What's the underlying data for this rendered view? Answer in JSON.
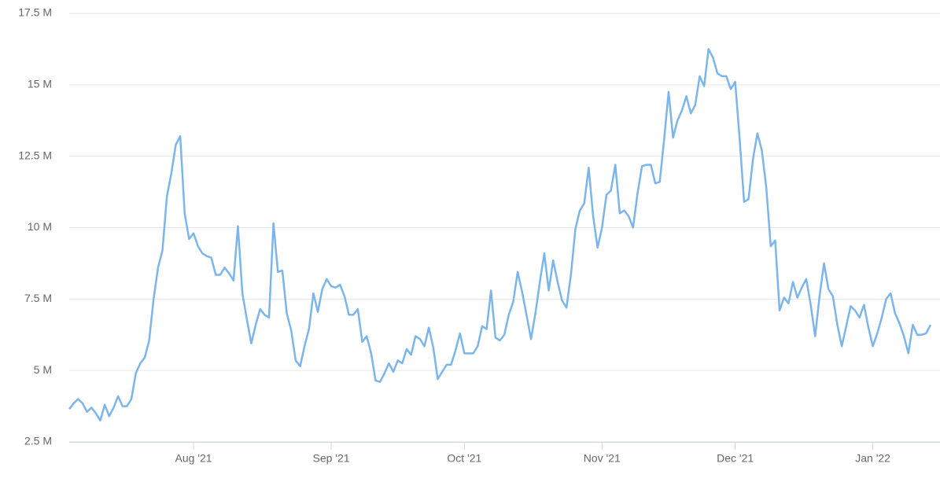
{
  "chart_data": {
    "type": "line",
    "categories": [
      null,
      null,
      null,
      null,
      null,
      null,
      null,
      null,
      null,
      null,
      null,
      null,
      null,
      null,
      null,
      null,
      null,
      null,
      null,
      null,
      null,
      null,
      null,
      null,
      null,
      null,
      null,
      null,
      "Aug '21",
      null,
      null,
      null,
      null,
      null,
      null,
      null,
      null,
      null,
      null,
      null,
      null,
      null,
      null,
      null,
      null,
      null,
      null,
      null,
      null,
      null,
      null,
      null,
      null,
      null,
      null,
      null,
      null,
      null,
      null,
      "Sep '21",
      null,
      null,
      null,
      null,
      null,
      null,
      null,
      null,
      null,
      null,
      null,
      null,
      null,
      null,
      null,
      null,
      null,
      null,
      null,
      null,
      null,
      null,
      null,
      null,
      null,
      null,
      null,
      null,
      null,
      "Oct '21",
      null,
      null,
      null,
      null,
      null,
      null,
      null,
      null,
      null,
      null,
      null,
      null,
      null,
      null,
      null,
      null,
      null,
      null,
      null,
      null,
      null,
      null,
      null,
      null,
      null,
      null,
      null,
      null,
      null,
      null,
      "Nov '21",
      null,
      null,
      null,
      null,
      null,
      null,
      null,
      null,
      null,
      null,
      null,
      null,
      null,
      null,
      null,
      null,
      null,
      null,
      null,
      null,
      null,
      null,
      null,
      null,
      null,
      null,
      null,
      null,
      null,
      "Dec '21",
      null,
      null,
      null,
      null,
      null,
      null,
      null,
      null,
      null,
      null,
      null,
      null,
      null,
      null,
      null,
      null,
      null,
      null,
      null,
      null,
      null,
      null,
      null,
      null,
      null,
      null,
      null,
      null,
      null,
      null,
      "Jan '22",
      null,
      null,
      null,
      null,
      null,
      null,
      null,
      null,
      null,
      null,
      null,
      null,
      null
    ],
    "series": [
      {
        "color": "#7cb5ec",
        "values": [
          3.65,
          3.85,
          4.0,
          3.85,
          3.55,
          3.7,
          3.5,
          3.25,
          3.8,
          3.4,
          3.7,
          4.1,
          3.75,
          3.75,
          4.0,
          4.9,
          5.25,
          5.45,
          6.05,
          7.5,
          8.6,
          9.2,
          11.1,
          11.9,
          12.9,
          13.2,
          10.5,
          9.6,
          9.8,
          9.35,
          9.1,
          9.0,
          8.95,
          8.35,
          8.35,
          8.6,
          8.4,
          8.15,
          10.05,
          7.7,
          6.8,
          5.95,
          6.6,
          7.15,
          6.95,
          6.85,
          10.15,
          8.45,
          8.5,
          7.0,
          6.4,
          5.35,
          5.15,
          5.85,
          6.45,
          7.7,
          7.05,
          7.85,
          8.2,
          7.95,
          7.9,
          8.0,
          7.6,
          6.95,
          6.95,
          7.15,
          6.0,
          6.2,
          5.6,
          4.65,
          4.6,
          4.9,
          5.25,
          4.95,
          5.35,
          5.25,
          5.75,
          5.55,
          6.2,
          6.1,
          5.85,
          6.5,
          5.8,
          4.7,
          4.95,
          5.2,
          5.2,
          5.7,
          6.3,
          5.6,
          5.6,
          5.6,
          5.85,
          6.55,
          6.45,
          7.8,
          6.15,
          6.05,
          6.25,
          6.95,
          7.4,
          8.45,
          7.75,
          6.95,
          6.1,
          7.0,
          8.1,
          9.1,
          7.8,
          8.85,
          8.1,
          7.45,
          7.2,
          8.35,
          9.95,
          10.6,
          10.85,
          12.1,
          10.4,
          9.3,
          10.0,
          11.15,
          11.3,
          12.2,
          10.5,
          10.6,
          10.4,
          10.0,
          11.2,
          12.15,
          12.2,
          12.2,
          11.55,
          11.6,
          13.1,
          14.75,
          13.15,
          13.75,
          14.1,
          14.6,
          14.0,
          14.3,
          15.3,
          14.95,
          16.25,
          15.95,
          15.4,
          15.3,
          15.3,
          14.85,
          15.1,
          13.1,
          10.9,
          11.0,
          12.4,
          13.3,
          12.7,
          11.4,
          9.35,
          9.55,
          7.1,
          7.55,
          7.35,
          8.1,
          7.55,
          7.9,
          8.2,
          7.3,
          6.2,
          7.6,
          8.75,
          7.85,
          7.6,
          6.6,
          5.85,
          6.55,
          7.25,
          7.1,
          6.85,
          7.3,
          6.5,
          5.85,
          6.3,
          6.85,
          7.5,
          7.7,
          7.0,
          6.65,
          6.2,
          5.6,
          6.6,
          6.25,
          6.25,
          6.3,
          6.6
        ]
      }
    ],
    "ylim": [
      2.5,
      17.5
    ],
    "yticks": [
      {
        "value": 2.5,
        "label": "2.5 M"
      },
      {
        "value": 5,
        "label": "5 M"
      },
      {
        "value": 7.5,
        "label": "7.5 M"
      },
      {
        "value": 10,
        "label": "10 M"
      },
      {
        "value": 12.5,
        "label": "12.5 M"
      },
      {
        "value": 15,
        "label": "15 M"
      },
      {
        "value": 17.5,
        "label": "17.5 M"
      }
    ],
    "grid": true
  }
}
